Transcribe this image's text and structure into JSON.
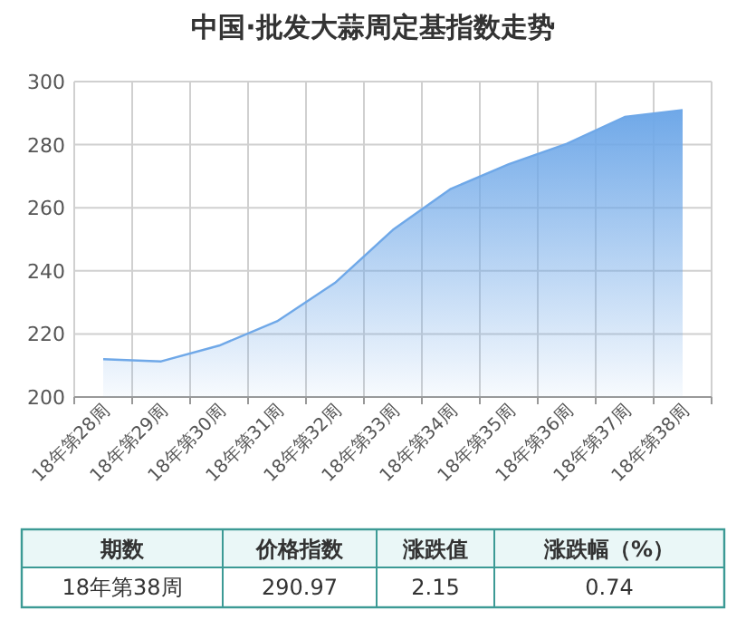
{
  "chart_data": {
    "type": "area",
    "title": "中国·批发大蒜周定基指数走势",
    "categories": [
      "18年第28周",
      "18年第29周",
      "18年第30周",
      "18年第31周",
      "18年第32周",
      "18年第33周",
      "18年第34周",
      "18年第35周",
      "18年第36周",
      "18年第37周",
      "18年第38周"
    ],
    "values": [
      212,
      211.3,
      216.3,
      224,
      236.2,
      253,
      266,
      273.8,
      280.3,
      288.8,
      290.97
    ],
    "color": "#6fa8e8",
    "ylim": [
      200,
      300
    ],
    "yticks": [
      200,
      220,
      240,
      260,
      280,
      300
    ],
    "grid": true,
    "annotations": [
      "期数",
      "价格指数",
      "涨跌值",
      "涨跌幅（%）",
      "18年第38周",
      "290.97",
      "2.15",
      "0.74"
    ]
  }
}
